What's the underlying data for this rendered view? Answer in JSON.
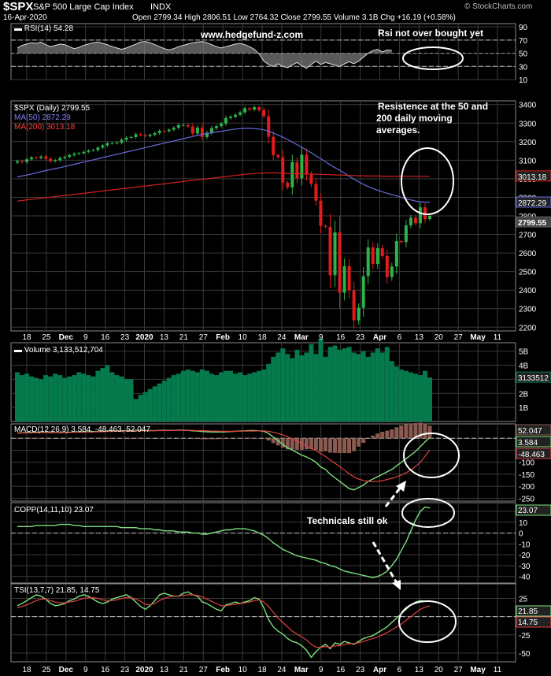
{
  "header": {
    "symbol": "$SPX",
    "name": "S&P 500 Large Cap Index",
    "exchange": "INDX",
    "watermark": "© StockCharts.com",
    "date": "16-Apr-2020",
    "quote": "Open 2799.34  High 2806.51  Low 2764.32  Close 2799.55  Volume 3.1B  Chg +16.19 (+0.58%)"
  },
  "annotations": {
    "site": "www.hedgefund-z.com",
    "rsi_note": "Rsi not over bought yet",
    "resist_note": [
      "Resistence at the 50 and",
      "200 daily moving",
      "averages."
    ],
    "tech_note": "Technicals still ok"
  },
  "colors": {
    "bg": "#000000",
    "grid": "#3a3a3a",
    "text": "#ffffff",
    "up": "#2db34a",
    "down": "#e21b1b",
    "ma50": "#6a6ae0",
    "ma200": "#d42020",
    "volume": "#057a4c",
    "macd_line": "#7ee07e",
    "signal_line": "#e04040",
    "hist": "#8a5a50",
    "rsi_fill": "#808080",
    "label_box": "#5a5a5a"
  },
  "chart_data": [
    {
      "panel": "rsi",
      "type": "line",
      "title": "RSI(14) 54.28",
      "yticks": [
        90,
        70,
        50,
        30,
        10
      ],
      "ylim": [
        10,
        95
      ],
      "current": "54.28",
      "values": [
        58,
        62,
        64,
        66,
        65,
        67,
        63,
        60,
        62,
        64,
        63,
        60,
        57,
        59,
        62,
        64,
        66,
        67,
        65,
        63,
        60,
        58,
        56,
        58,
        61,
        64,
        67,
        68,
        66,
        63,
        60,
        57,
        55,
        57,
        60,
        62,
        64,
        66,
        67,
        68,
        66,
        63,
        60,
        58,
        60,
        62,
        64,
        65,
        63,
        60,
        56,
        49,
        38,
        33,
        30,
        34,
        30,
        28,
        32,
        36,
        31,
        27,
        33,
        38,
        33,
        36,
        34,
        32,
        30,
        34,
        37,
        34,
        38,
        44,
        50,
        54,
        56,
        52,
        55,
        54.28
      ]
    },
    {
      "panel": "price",
      "type": "candlestick",
      "title": "$SPX (Daily) 2799.55",
      "ma50_label": "MA(50) 2872.29",
      "ma200_label": "MA(200) 3013.18",
      "yticks": [
        3400,
        3300,
        3200,
        3100,
        3000,
        2900,
        2800,
        2700,
        2600,
        2500,
        2400,
        2300,
        2200
      ],
      "ylim": [
        2180,
        3420
      ],
      "last_labels": {
        "ma200": "3013.18",
        "ma50": "2872.29",
        "close": "2799.55"
      },
      "close": [
        3095,
        3090,
        3105,
        3115,
        3112,
        3120,
        3108,
        3095,
        3100,
        3112,
        3118,
        3128,
        3135,
        3138,
        3145,
        3152,
        3155,
        3168,
        3180,
        3191,
        3192,
        3195,
        3210,
        3221,
        3225,
        3240,
        3235,
        3230,
        3237,
        3246,
        3258,
        3257,
        3265,
        3275,
        3289,
        3290,
        3282,
        3244,
        3276,
        3225,
        3248,
        3273,
        3284,
        3298,
        3327,
        3334,
        3345,
        3358,
        3380,
        3373,
        3386,
        3370,
        3338,
        3226,
        3128,
        3116,
        2979,
        2954,
        3090,
        3003,
        3130,
        3023,
        2972,
        2882,
        2746,
        2741,
        2480,
        2711,
        2386,
        2529,
        2398,
        2237,
        2305,
        2475,
        2630,
        2541,
        2626,
        2584,
        2470,
        2527,
        2664,
        2659,
        2749,
        2790,
        2761,
        2846,
        2783,
        2799.55
      ],
      "ma50": [
        3010,
        3015,
        3020,
        3026,
        3032,
        3038,
        3044,
        3050,
        3055,
        3060,
        3066,
        3072,
        3078,
        3084,
        3090,
        3096,
        3102,
        3108,
        3114,
        3120,
        3126,
        3132,
        3138,
        3144,
        3150,
        3156,
        3162,
        3168,
        3174,
        3180,
        3186,
        3192,
        3198,
        3204,
        3210,
        3216,
        3222,
        3228,
        3234,
        3240,
        3244,
        3248,
        3252,
        3256,
        3260,
        3264,
        3268,
        3270,
        3272,
        3272,
        3270,
        3268,
        3264,
        3256,
        3246,
        3236,
        3224,
        3212,
        3198,
        3184,
        3170,
        3155,
        3140,
        3124,
        3108,
        3092,
        3075,
        3060,
        3046,
        3030,
        3014,
        2998,
        2984,
        2970,
        2958,
        2948,
        2938,
        2930,
        2922,
        2915,
        2908,
        2900,
        2892,
        2886,
        2880,
        2876,
        2874,
        2872.29
      ],
      "ma200": [
        2880,
        2883,
        2886,
        2889,
        2892,
        2895,
        2898,
        2901,
        2904,
        2907,
        2910,
        2913,
        2916,
        2919,
        2922,
        2925,
        2928,
        2931,
        2934,
        2937,
        2940,
        2943,
        2946,
        2949,
        2952,
        2955,
        2958,
        2961,
        2964,
        2967,
        2970,
        2973,
        2976,
        2979,
        2982,
        2985,
        2988,
        2991,
        2994,
        2997,
        3000,
        3003,
        3006,
        3009,
        3012,
        3015,
        3018,
        3021,
        3024,
        3026,
        3028,
        3030,
        3031,
        3032,
        3032,
        3031,
        3030,
        3029,
        3028,
        3027,
        3027,
        3026,
        3026,
        3025,
        3024,
        3023,
        3022,
        3021,
        3020,
        3019,
        3018,
        3017,
        3016,
        3016,
        3015,
        3015,
        3015,
        3014,
        3014,
        3014,
        3014,
        3013.5,
        3013.5,
        3013.5,
        3013.4,
        3013.3,
        3013.2,
        3013.18
      ]
    },
    {
      "panel": "volume",
      "type": "bar",
      "title": "Volume 3,133,512,704",
      "yticks": [
        "5B",
        "4B",
        "3B",
        "2B",
        "1B"
      ],
      "ytick_values": [
        5,
        4,
        3,
        2,
        1
      ],
      "ylim": [
        0,
        5.6
      ],
      "current": "3133512",
      "values_billions": [
        3.5,
        3.3,
        3.4,
        3.2,
        3.1,
        3.0,
        3.3,
        3.2,
        3.4,
        3.3,
        3.1,
        3.2,
        3.3,
        3.5,
        3.4,
        3.3,
        3.2,
        3.6,
        3.8,
        4.0,
        3.5,
        3.3,
        3.2,
        3.0,
        3.0,
        1.6,
        1.9,
        2.1,
        2.3,
        2.5,
        2.7,
        2.9,
        3.1,
        3.3,
        3.4,
        3.6,
        3.7,
        3.6,
        3.5,
        3.7,
        3.6,
        3.4,
        3.3,
        3.5,
        3.6,
        3.6,
        3.4,
        3.5,
        3.3,
        3.4,
        3.5,
        3.6,
        3.7,
        4.1,
        4.6,
        4.9,
        5.2,
        4.8,
        4.5,
        5.1,
        4.7,
        4.9,
        5.5,
        4.8,
        5.9,
        4.6,
        5.3,
        5.4,
        5.1,
        5.2,
        5.3,
        4.9,
        4.8,
        5.0,
        4.6,
        4.9,
        5.2,
        4.9,
        5.3,
        4.3,
        3.9,
        3.7,
        3.6,
        3.5,
        3.4,
        3.3,
        3.6,
        3.13
      ]
    },
    {
      "panel": "macd",
      "type": "line",
      "title": "MACD(12,26,9) 3.584, -48.463, 52.047",
      "yticks": [
        0,
        -50,
        -100,
        -150,
        -200,
        -250
      ],
      "ylim": [
        -262,
        60
      ],
      "last_labels": {
        "hist": "52.047",
        "macd": "3.584",
        "signal": "-48.463"
      },
      "macd": [
        22,
        23,
        24,
        25,
        25,
        26,
        25,
        24,
        24,
        24,
        24,
        25,
        26,
        26,
        27,
        27,
        28,
        28,
        29,
        30,
        30,
        30,
        31,
        32,
        32,
        33,
        33,
        32,
        32,
        32,
        33,
        33,
        33,
        33,
        34,
        34,
        33,
        31,
        30,
        28,
        27,
        26,
        26,
        26,
        27,
        28,
        29,
        30,
        31,
        32,
        32,
        31,
        29,
        20,
        5,
        -10,
        -25,
        -40,
        -48,
        -60,
        -70,
        -78,
        -88,
        -100,
        -120,
        -130,
        -150,
        -165,
        -180,
        -195,
        -210,
        -215,
        -205,
        -195,
        -180,
        -170,
        -160,
        -150,
        -140,
        -130,
        -115,
        -100,
        -85,
        -70,
        -55,
        -35,
        -15,
        3.584
      ],
      "signal": [
        21,
        22,
        22,
        23,
        23,
        24,
        24,
        24,
        24,
        24,
        24,
        24,
        25,
        25,
        25,
        26,
        26,
        27,
        27,
        28,
        28,
        29,
        29,
        30,
        30,
        31,
        31,
        31,
        31,
        32,
        32,
        32,
        32,
        33,
        33,
        33,
        33,
        33,
        32,
        32,
        31,
        30,
        30,
        29,
        29,
        29,
        29,
        29,
        30,
        30,
        30,
        31,
        31,
        29,
        25,
        20,
        14,
        6,
        -2,
        -12,
        -22,
        -32,
        -42,
        -52,
        -64,
        -76,
        -90,
        -104,
        -118,
        -133,
        -148,
        -161,
        -170,
        -176,
        -180,
        -181,
        -180,
        -177,
        -172,
        -167,
        -161,
        -153,
        -144,
        -132,
        -118,
        -100,
        -75,
        -48.463
      ]
    },
    {
      "panel": "copp",
      "type": "line",
      "title": "COPP(14,11,10) 23.07",
      "yticks": [
        20,
        10,
        0,
        -10,
        -20,
        -30,
        -40
      ],
      "ylim": [
        -46,
        28
      ],
      "current": "23.07",
      "values": [
        6,
        6,
        6,
        6,
        7,
        7,
        7,
        7,
        7,
        8,
        8,
        8,
        7,
        7,
        6,
        6,
        6,
        6,
        6,
        6,
        6,
        6,
        5,
        5,
        5,
        5,
        4,
        4,
        4,
        3,
        3,
        2,
        2,
        2,
        1,
        1,
        1,
        0,
        0,
        -1,
        -1,
        0,
        1,
        2,
        3,
        3,
        4,
        4,
        4,
        3,
        2,
        0,
        -2,
        -5,
        -9,
        -12,
        -15,
        -17,
        -19,
        -21,
        -22,
        -23,
        -24,
        -25,
        -27,
        -28,
        -30,
        -31,
        -33,
        -35,
        -36,
        -37,
        -38,
        -39,
        -40,
        -41,
        -40,
        -38,
        -35,
        -30,
        -24,
        -16,
        -8,
        2,
        12,
        20,
        24,
        23.07
      ]
    },
    {
      "panel": "tsi",
      "type": "line",
      "title": "TSI(13,7,7) 21.85, 14.75",
      "yticks": [
        25,
        0,
        -25,
        -50
      ],
      "ylim": [
        -62,
        45
      ],
      "last_labels": {
        "tsi": "21.85",
        "signal": "14.75"
      },
      "tsi": [
        15,
        18,
        22,
        26,
        30,
        28,
        24,
        18,
        15,
        16,
        18,
        22,
        24,
        28,
        30,
        28,
        24,
        20,
        18,
        20,
        24,
        26,
        28,
        30,
        26,
        20,
        14,
        10,
        15,
        22,
        30,
        32,
        30,
        28,
        28,
        32,
        34,
        30,
        28,
        20,
        18,
        14,
        10,
        8,
        16,
        18,
        20,
        18,
        20,
        22,
        26,
        24,
        12,
        -4,
        -14,
        -20,
        -24,
        -30,
        -34,
        -36,
        -40,
        -46,
        -56,
        -48,
        -42,
        -38,
        -44,
        -36,
        -38,
        -34,
        -36,
        -38,
        -34,
        -30,
        -28,
        -26,
        -22,
        -18,
        -14,
        -8,
        -2,
        4,
        10,
        16,
        20,
        22,
        21,
        21.85
      ],
      "signal": [
        12,
        14,
        16,
        19,
        22,
        24,
        24,
        22,
        20,
        19,
        19,
        20,
        21,
        23,
        25,
        26,
        26,
        25,
        23,
        22,
        22,
        23,
        25,
        26,
        26,
        24,
        21,
        17,
        16,
        18,
        22,
        25,
        27,
        28,
        28,
        29,
        30,
        30,
        29,
        27,
        24,
        21,
        18,
        15,
        15,
        16,
        17,
        18,
        19,
        20,
        22,
        23,
        20,
        14,
        6,
        -2,
        -8,
        -14,
        -20,
        -24,
        -28,
        -32,
        -38,
        -42,
        -42,
        -41,
        -42,
        -40,
        -40,
        -38,
        -37,
        -37,
        -36,
        -34,
        -32,
        -30,
        -28,
        -25,
        -22,
        -18,
        -14,
        -10,
        -5,
        0,
        5,
        10,
        13,
        14.75
      ]
    }
  ],
  "x_axis": {
    "labels": [
      "18",
      "25",
      "Dec",
      "9",
      "16",
      "23",
      "2020",
      "13",
      "21",
      "27",
      "Feb",
      "10",
      "18",
      "24",
      "Mar",
      "9",
      "16",
      "23",
      "Apr",
      "6",
      "13",
      "20",
      "27",
      "May",
      "11"
    ]
  }
}
